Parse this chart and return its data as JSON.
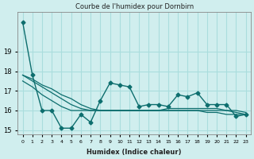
{
  "title": "Courbe de l'humidex pour Dornbirn",
  "xlabel": "Humidex (Indice chaleur)",
  "ylabel": "",
  "background_color": "#d0eeee",
  "grid_color": "#aadddd",
  "line_color": "#0d6e6e",
  "x": [
    0,
    1,
    2,
    3,
    4,
    5,
    6,
    7,
    8,
    9,
    10,
    11,
    12,
    13,
    14,
    15,
    16,
    17,
    18,
    19,
    20,
    21,
    22,
    23
  ],
  "y_main": [
    20.5,
    17.8,
    16.0,
    16.0,
    15.1,
    15.1,
    15.8,
    15.4,
    16.5,
    17.4,
    17.3,
    17.2,
    16.2,
    16.3,
    16.3,
    16.2,
    16.8,
    16.7,
    16.9,
    16.3,
    16.3,
    16.3,
    15.7,
    15.8
  ],
  "y_smooth1": [
    17.8,
    17.6,
    17.3,
    17.1,
    16.8,
    16.6,
    16.3,
    16.1,
    16.0,
    16.0,
    16.0,
    16.0,
    16.0,
    16.0,
    16.0,
    16.1,
    16.1,
    16.1,
    16.1,
    16.1,
    16.1,
    16.0,
    16.0,
    15.9
  ],
  "y_smooth2": [
    17.8,
    17.5,
    17.2,
    16.9,
    16.6,
    16.3,
    16.1,
    16.0,
    16.0,
    16.0,
    16.0,
    16.0,
    16.0,
    16.0,
    16.0,
    16.0,
    16.0,
    16.0,
    16.0,
    16.0,
    16.0,
    16.0,
    15.9,
    15.8
  ],
  "y_smooth3": [
    17.5,
    17.2,
    16.8,
    16.5,
    16.2,
    16.0,
    16.0,
    16.0,
    16.0,
    16.0,
    16.0,
    16.0,
    16.0,
    16.0,
    16.0,
    16.0,
    16.0,
    16.0,
    16.0,
    15.9,
    15.9,
    15.8,
    15.8,
    15.8
  ],
  "ylim": [
    14.8,
    21.0
  ],
  "xlim": [
    -0.5,
    23.5
  ],
  "yticks": [
    15,
    16,
    17,
    18,
    19
  ],
  "xtick_labels": [
    "0",
    "1",
    "2",
    "3",
    "4",
    "5",
    "6",
    "7",
    "8",
    "9",
    "10",
    "11",
    "12",
    "13",
    "14",
    "15",
    "16",
    "17",
    "18",
    "19",
    "20",
    "21",
    "22",
    "23"
  ]
}
